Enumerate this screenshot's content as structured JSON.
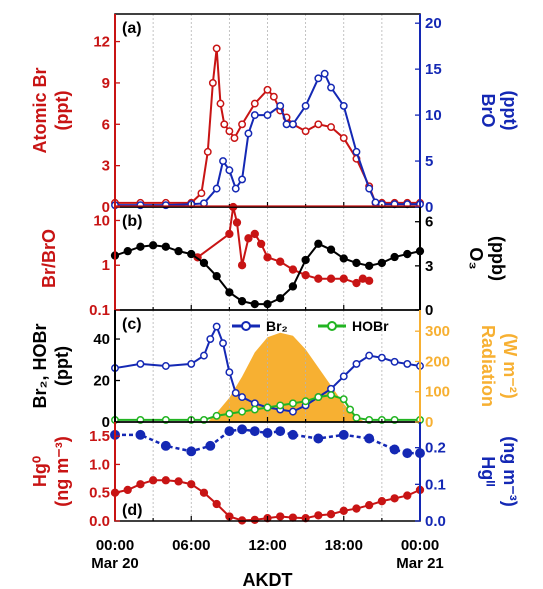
{
  "colors": {
    "red": "#c81414",
    "blue": "#1428b4",
    "green": "#22b422",
    "orange": "#f7b032",
    "black": "#000000",
    "grid": "#b4b4b4"
  },
  "x_axis": {
    "label": "AKDT",
    "ticks": [
      {
        "hour": 0,
        "time": "00:00",
        "date": "Mar 20"
      },
      {
        "hour": 6,
        "time": "06:00",
        "date": ""
      },
      {
        "hour": 12,
        "time": "12:00",
        "date": ""
      },
      {
        "hour": 18,
        "time": "18:00",
        "date": ""
      },
      {
        "hour": 24,
        "time": "00:00",
        "date": "Mar 21"
      }
    ]
  },
  "panels": {
    "a": {
      "tag": "(a)",
      "left_label": [
        "Atomic Br",
        "(ppt)"
      ],
      "right_label": [
        "BrO",
        "(ppt)"
      ]
    },
    "b": {
      "tag": "(b)",
      "left_label": [
        "Br/BrO"
      ],
      "right_label": [
        "O₃",
        "(ppb)"
      ]
    },
    "c": {
      "tag": "(c)",
      "left_label": [
        "Br₂, HOBr",
        "(ppt)"
      ],
      "right_label": [
        "Radiation",
        "(W m⁻²)"
      ],
      "legend": [
        "Br₂",
        "HOBr"
      ]
    },
    "d": {
      "tag": "(d)",
      "left_label": [
        "Hg⁰",
        "(ng m⁻³)"
      ],
      "right_label": [
        "Hgᴵᴵ",
        "(ng m⁻³)"
      ]
    }
  },
  "chart_data": [
    {
      "panel": "a",
      "type": "line",
      "x_unit": "hour of day (AKDT), 0 = Mar 20 00:00",
      "left_axis": {
        "ylim": [
          0,
          14
        ],
        "ticks": [
          "0",
          "3",
          "6",
          "9",
          "12"
        ]
      },
      "right_axis": {
        "ylim": [
          0,
          21
        ],
        "ticks": [
          "0",
          "5",
          "10",
          "15",
          "20"
        ]
      },
      "series": [
        {
          "name": "Atomic Br",
          "axis": "left",
          "color": "#c81414",
          "x": [
            0,
            2,
            4,
            6,
            6.8,
            7.3,
            7.7,
            8.0,
            8.3,
            8.6,
            9.0,
            9.4,
            10,
            11,
            12,
            12.5,
            13,
            13.5,
            14,
            15,
            16,
            17,
            18,
            19,
            20,
            20.5,
            21,
            22,
            23,
            24
          ],
          "y": [
            0.3,
            0.3,
            0.3,
            0.3,
            1.0,
            4.0,
            9.0,
            11.5,
            7.5,
            6.0,
            5.5,
            5.0,
            6.0,
            7.5,
            8.5,
            8.0,
            7.0,
            6.5,
            6.0,
            5.5,
            6.0,
            5.8,
            5.0,
            3.5,
            1.5,
            0.3,
            0.3,
            0.3,
            0.3,
            0.3
          ]
        },
        {
          "name": "BrO",
          "axis": "right",
          "color": "#1428b4",
          "x": [
            0,
            2,
            4,
            6,
            7,
            8,
            8.5,
            9,
            9.5,
            10,
            10.5,
            11,
            12,
            13,
            13.5,
            14,
            15,
            16,
            16.5,
            17,
            18,
            19,
            20,
            20.5,
            21,
            22,
            23,
            24
          ],
          "y": [
            0.2,
            0.2,
            0.2,
            0.3,
            0.4,
            2.0,
            5.0,
            4.0,
            2.0,
            3.0,
            8.0,
            10.0,
            10.0,
            11.0,
            9.0,
            9.0,
            11.0,
            14.0,
            14.5,
            13.0,
            11.0,
            6.0,
            2.0,
            0.5,
            0.3,
            0.3,
            0.3,
            0.3
          ]
        }
      ]
    },
    {
      "panel": "b",
      "type": "line",
      "x_unit": "hour of day (AKDT)",
      "left_axis": {
        "scale": "log",
        "ylim": [
          0.1,
          20
        ],
        "ticks": [
          "0.1",
          "1",
          "10"
        ]
      },
      "right_axis": {
        "ylim": [
          0,
          7
        ],
        "ticks": [
          "0",
          "3",
          "6"
        ]
      },
      "series": [
        {
          "name": "Br/BrO",
          "axis": "left",
          "color": "#c81414",
          "x": [
            6.5,
            9,
            9.3,
            9.6,
            10,
            10.5,
            11,
            11.5,
            12,
            13,
            14,
            15,
            16,
            17,
            18,
            19,
            19.5,
            20
          ],
          "y": [
            1.5,
            5.0,
            20.0,
            9.0,
            1.0,
            4.0,
            5.0,
            3.0,
            1.5,
            1.2,
            0.8,
            0.6,
            0.5,
            0.5,
            0.5,
            0.4,
            0.5,
            0.45
          ]
        },
        {
          "name": "O3",
          "axis": "right",
          "color": "#000000",
          "x": [
            0,
            1,
            2,
            3,
            4,
            5,
            6,
            7,
            8,
            9,
            10,
            11,
            12,
            13,
            14,
            15,
            16,
            17,
            18,
            19,
            20,
            21,
            22,
            23,
            24
          ],
          "y": [
            3.7,
            4.0,
            4.3,
            4.4,
            4.3,
            4.0,
            3.8,
            3.2,
            2.3,
            1.2,
            0.6,
            0.4,
            0.4,
            0.8,
            1.6,
            3.4,
            4.5,
            4.1,
            3.5,
            3.2,
            3.0,
            3.2,
            3.6,
            3.8,
            4.0
          ]
        }
      ]
    },
    {
      "panel": "c",
      "type": "line",
      "x_unit": "hour of day (AKDT)",
      "left_axis": {
        "ylim": [
          0,
          54
        ],
        "ticks": [
          "0",
          "20",
          "40"
        ]
      },
      "right_axis": {
        "ylim": [
          0,
          370
        ],
        "ticks": [
          "0",
          "100",
          "200",
          "300"
        ]
      },
      "series": [
        {
          "name": "Radiation",
          "axis": "right",
          "type": "area",
          "color": "#f7b032",
          "x": [
            7.3,
            8,
            9,
            10,
            11,
            12,
            13,
            14,
            15,
            16,
            17,
            18,
            19,
            19.7
          ],
          "y": [
            0,
            30,
            80,
            150,
            230,
            280,
            295,
            285,
            240,
            180,
            120,
            60,
            15,
            0
          ]
        },
        {
          "name": "Br₂",
          "axis": "left",
          "color": "#1428b4",
          "x": [
            0,
            2,
            4,
            6,
            7,
            7.5,
            8,
            8.5,
            9,
            9.5,
            10,
            11,
            12,
            13,
            14,
            15,
            16,
            17,
            18,
            19,
            20,
            21,
            22,
            23,
            24
          ],
          "y": [
            26,
            28,
            27,
            28,
            32,
            40,
            46,
            38,
            24,
            14,
            12,
            9,
            7,
            6,
            5,
            8,
            12,
            16,
            22,
            28,
            32,
            31,
            29,
            28,
            27
          ]
        },
        {
          "name": "HOBr",
          "axis": "left",
          "color": "#22b422",
          "x": [
            0,
            2,
            4,
            6,
            7,
            8,
            9,
            10,
            11,
            12,
            13,
            14,
            15,
            16,
            17,
            18,
            18.5,
            19,
            20,
            21,
            22,
            24
          ],
          "y": [
            1,
            1,
            1,
            1,
            1,
            3,
            4,
            5,
            6,
            7,
            8,
            9,
            10,
            12,
            13,
            11,
            6,
            2,
            1,
            1,
            1,
            1
          ]
        }
      ]
    },
    {
      "panel": "d",
      "type": "line",
      "x_unit": "hour of day (AKDT)",
      "left_axis": {
        "ylim": [
          0,
          1.75
        ],
        "ticks": [
          "0.0",
          "0.5",
          "1.0",
          "1.5"
        ]
      },
      "right_axis": {
        "ylim": [
          0,
          0.27
        ],
        "ticks": [
          "0.0",
          "0.1",
          "0.2"
        ]
      },
      "series": [
        {
          "name": "Hg0",
          "axis": "left",
          "color": "#c81414",
          "x": [
            0,
            1,
            2,
            3,
            4,
            5,
            6,
            7,
            8,
            9,
            10,
            11,
            12,
            13,
            14,
            15,
            16,
            17,
            18,
            19,
            20,
            21,
            22,
            23,
            24
          ],
          "y": [
            0.5,
            0.55,
            0.65,
            0.72,
            0.72,
            0.7,
            0.65,
            0.5,
            0.3,
            0.08,
            0.01,
            0.02,
            0.05,
            0.08,
            0.06,
            0.05,
            0.1,
            0.12,
            0.18,
            0.22,
            0.28,
            0.35,
            0.4,
            0.45,
            0.55
          ]
        },
        {
          "name": "HgII",
          "axis": "right",
          "color": "#1428b4",
          "x": [
            0,
            2,
            4,
            6,
            7.5,
            9,
            10,
            11,
            12,
            13,
            14,
            16,
            18,
            20,
            22,
            23,
            24
          ],
          "y": [
            0.235,
            0.235,
            0.205,
            0.19,
            0.205,
            0.245,
            0.25,
            0.245,
            0.24,
            0.245,
            0.235,
            0.225,
            0.235,
            0.225,
            0.195,
            0.185,
            0.185
          ]
        }
      ]
    }
  ]
}
